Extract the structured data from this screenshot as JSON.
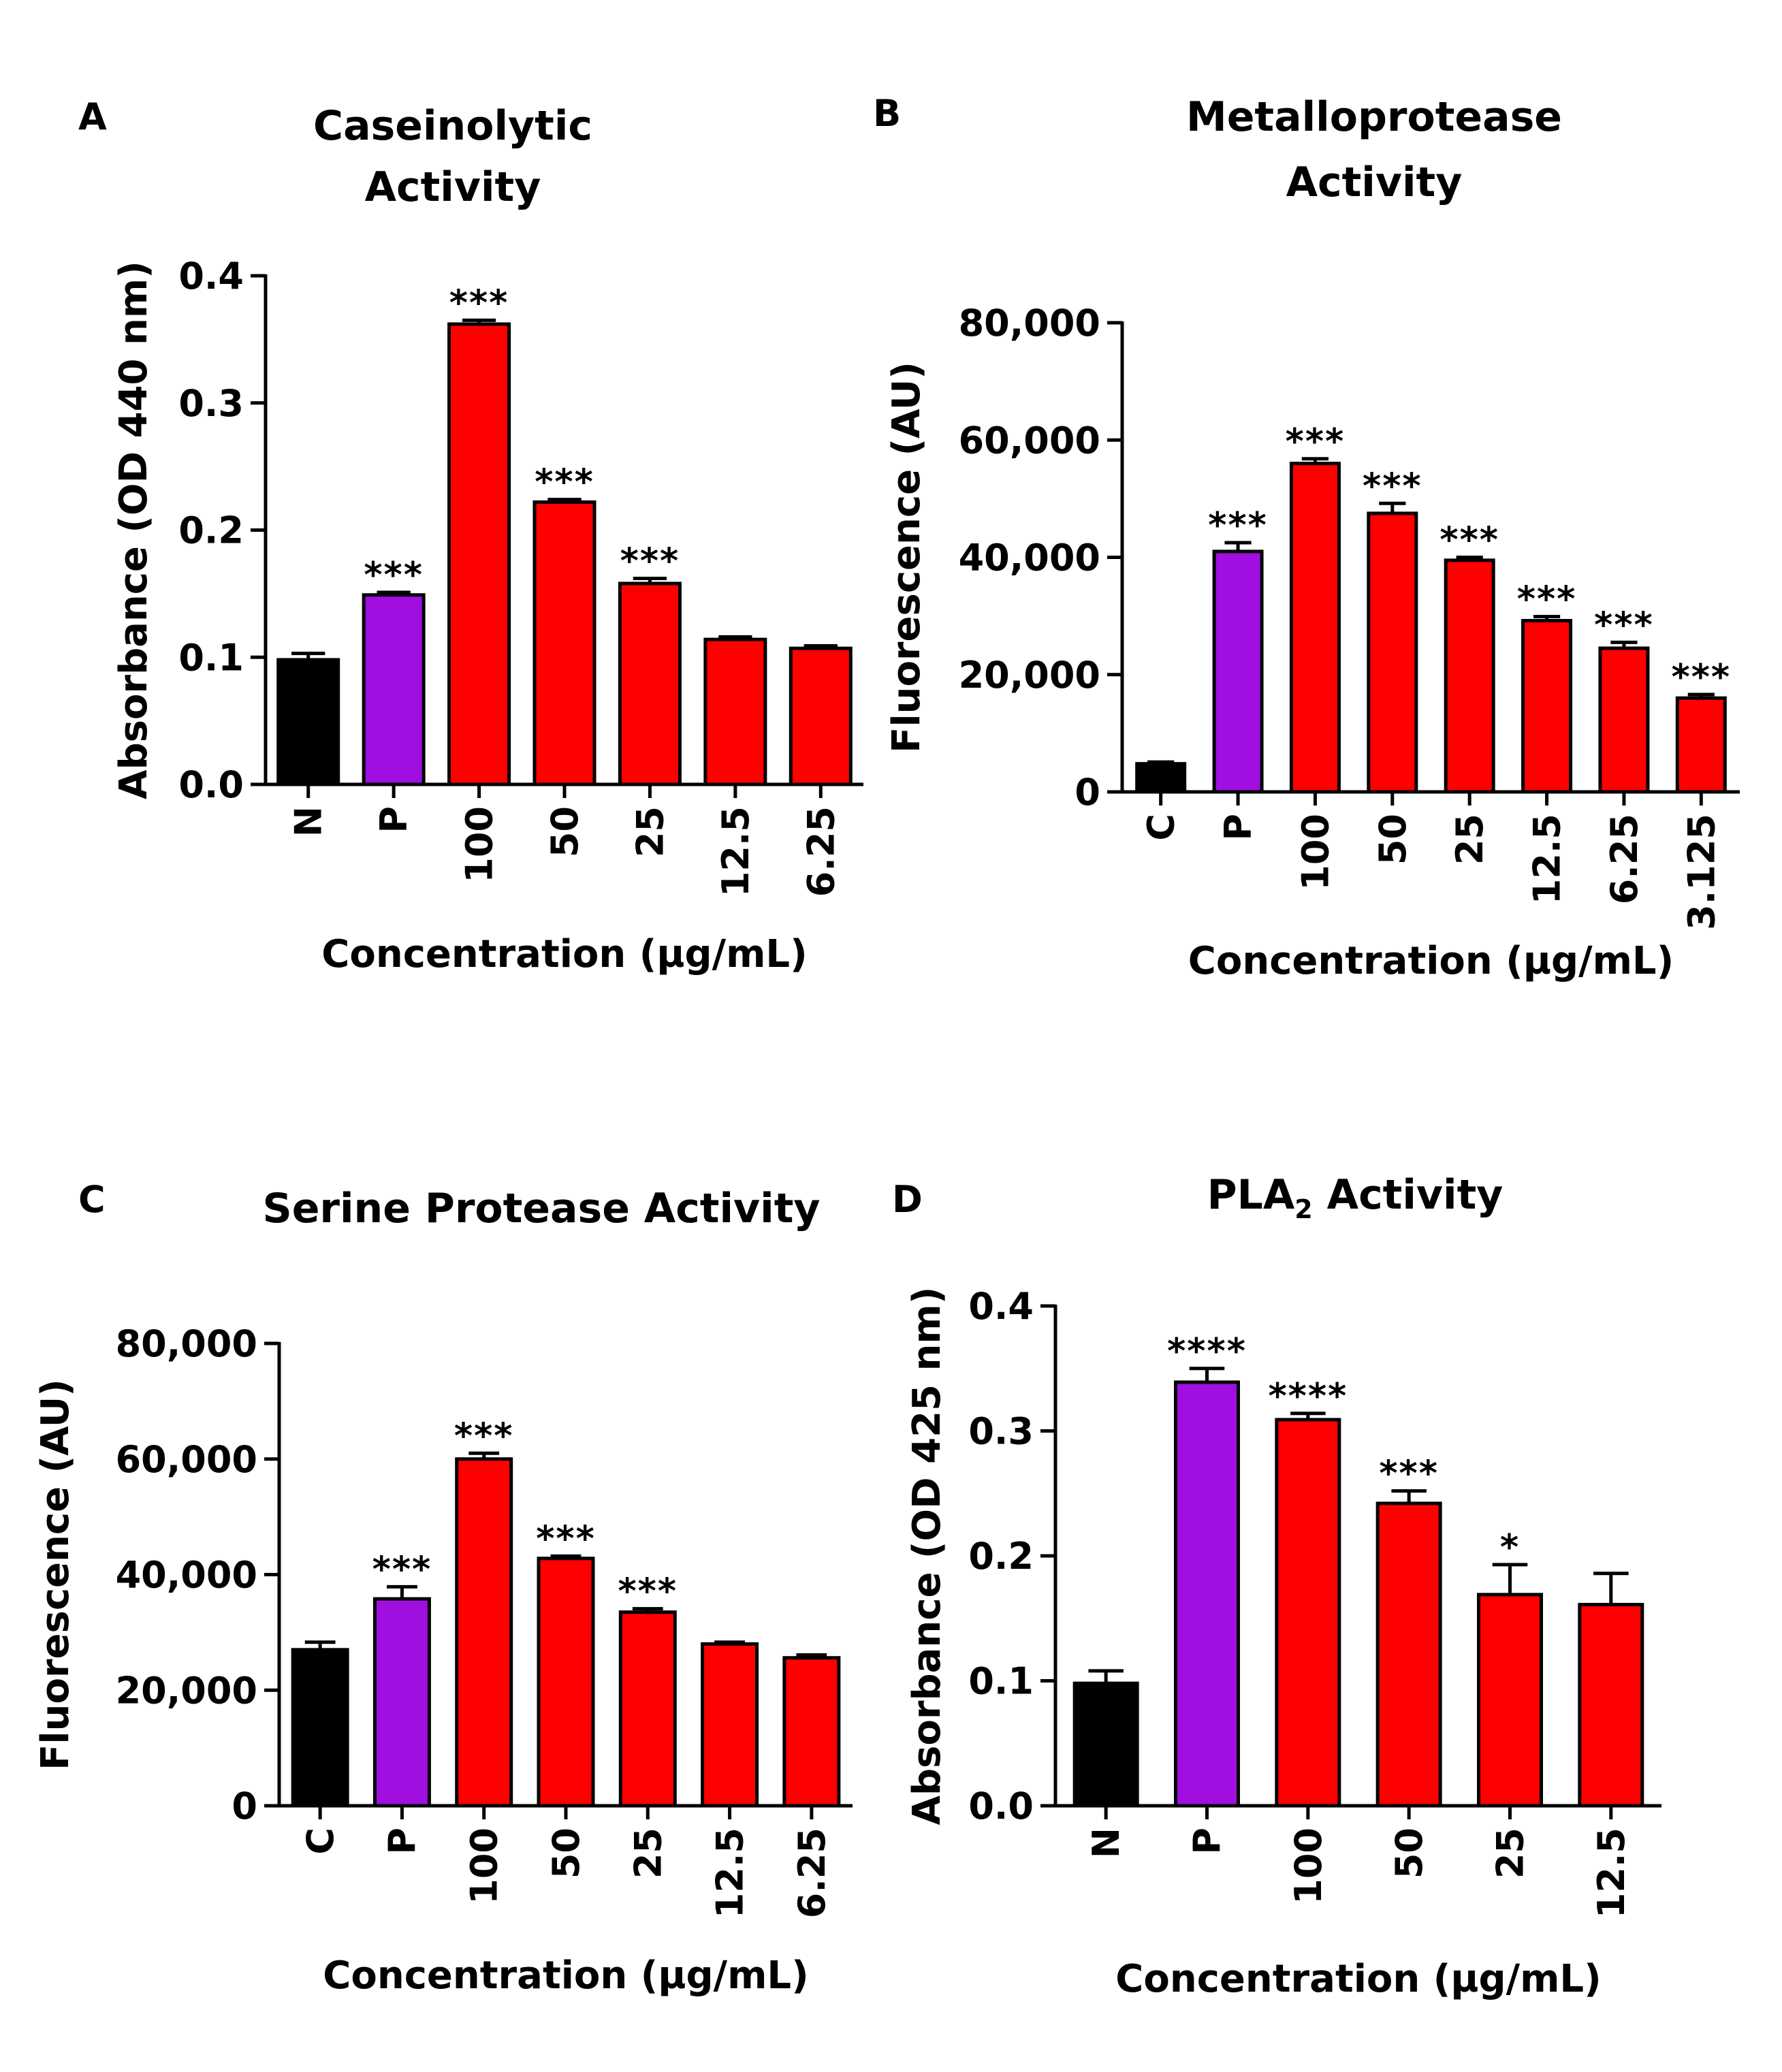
{
  "colors": {
    "control": "#000000",
    "positive": "#A00EE0",
    "sample": "#FF0000",
    "stroke": "#000000"
  },
  "chart_data": [
    {
      "id": "A",
      "panel": "A",
      "type": "bar",
      "title_lines": [
        "Caseinolytic",
        "Activity"
      ],
      "title_sub": "",
      "title_tail": "",
      "xlabel": "Concentration (µg/mL)",
      "ylabel": "Absorbance (OD  440 nm)",
      "ylim": [
        0,
        0.4
      ],
      "yticks": [
        0,
        0.1,
        0.2,
        0.3,
        0.4
      ],
      "ytick_labels": [
        "0.0",
        "0.1",
        "0.2",
        "0.3",
        "0.4"
      ],
      "categories": [
        "N",
        "P",
        "100",
        "50",
        "25",
        "12.5",
        "6.25"
      ],
      "values": [
        0.098,
        0.149,
        0.362,
        0.222,
        0.158,
        0.114,
        0.107
      ],
      "errors": [
        0.005,
        0.002,
        0.003,
        0.002,
        0.004,
        0.002,
        0.002
      ],
      "significance": [
        "",
        "***",
        "***",
        "***",
        "***",
        "",
        ""
      ],
      "bar_colors": [
        "control",
        "positive",
        "sample",
        "sample",
        "sample",
        "sample",
        "sample"
      ]
    },
    {
      "id": "B",
      "panel": "B",
      "type": "bar",
      "title_lines": [
        "Metalloprotease",
        "Activity"
      ],
      "title_sub": "",
      "title_tail": "",
      "xlabel": "Concentration (µg/mL)",
      "ylabel": "Fluorescence (AU)",
      "ylim": [
        0,
        80000
      ],
      "yticks": [
        0,
        20000,
        40000,
        60000,
        80000
      ],
      "ytick_labels": [
        "0",
        "20,000",
        "40,000",
        "60,000",
        "80,000"
      ],
      "categories": [
        "C",
        "P",
        "100",
        "50",
        "25",
        "12.5",
        "6.25",
        "3.125"
      ],
      "values": [
        4800,
        41000,
        56000,
        47500,
        39500,
        29200,
        24500,
        16000
      ],
      "errors": [
        300,
        1500,
        800,
        1700,
        500,
        700,
        1000,
        600
      ],
      "significance": [
        "",
        "***",
        "***",
        "***",
        "***",
        "***",
        "***",
        "***"
      ],
      "bar_colors": [
        "control",
        "positive",
        "sample",
        "sample",
        "sample",
        "sample",
        "sample",
        "sample"
      ]
    },
    {
      "id": "C",
      "panel": "C",
      "type": "bar",
      "title_lines": [
        "Serine Protease Activity"
      ],
      "title_sub": "",
      "title_tail": "",
      "xlabel": "Concentration (µg/mL)",
      "ylabel": "Fluorescence (AU)",
      "ylim": [
        0,
        80000
      ],
      "yticks": [
        0,
        20000,
        40000,
        60000,
        80000
      ],
      "ytick_labels": [
        "0",
        "20,000",
        "40,000",
        "60,000",
        "80,000"
      ],
      "categories": [
        "C",
        "P",
        "100",
        "50",
        "25",
        "12.5",
        "6.25"
      ],
      "values": [
        27000,
        35800,
        60000,
        42800,
        33500,
        28000,
        25600
      ],
      "errors": [
        1300,
        2100,
        1000,
        400,
        600,
        300,
        500
      ],
      "significance": [
        "",
        "***",
        "***",
        "***",
        "***",
        "",
        ""
      ],
      "bar_colors": [
        "control",
        "positive",
        "sample",
        "sample",
        "sample",
        "sample",
        "sample"
      ]
    },
    {
      "id": "D",
      "panel": "D",
      "type": "bar",
      "title_lines": [
        "PLA"
      ],
      "title_sub": "2",
      "title_tail": " Activity",
      "xlabel": "Concentration (µg/mL)",
      "ylabel": "Absorbance (OD  425 nm)",
      "ylim": [
        0,
        0.4
      ],
      "yticks": [
        0,
        0.1,
        0.2,
        0.3,
        0.4
      ],
      "ytick_labels": [
        "0.0",
        "0.1",
        "0.2",
        "0.3",
        "0.4"
      ],
      "categories": [
        "N",
        "P",
        "100",
        "50",
        "25",
        "12.5"
      ],
      "values": [
        0.098,
        0.339,
        0.309,
        0.242,
        0.169,
        0.161
      ],
      "errors": [
        0.01,
        0.011,
        0.005,
        0.01,
        0.024,
        0.025
      ],
      "significance": [
        "",
        "****",
        "****",
        "***",
        "*",
        ""
      ],
      "bar_colors": [
        "control",
        "positive",
        "sample",
        "sample",
        "sample",
        "sample"
      ]
    }
  ]
}
